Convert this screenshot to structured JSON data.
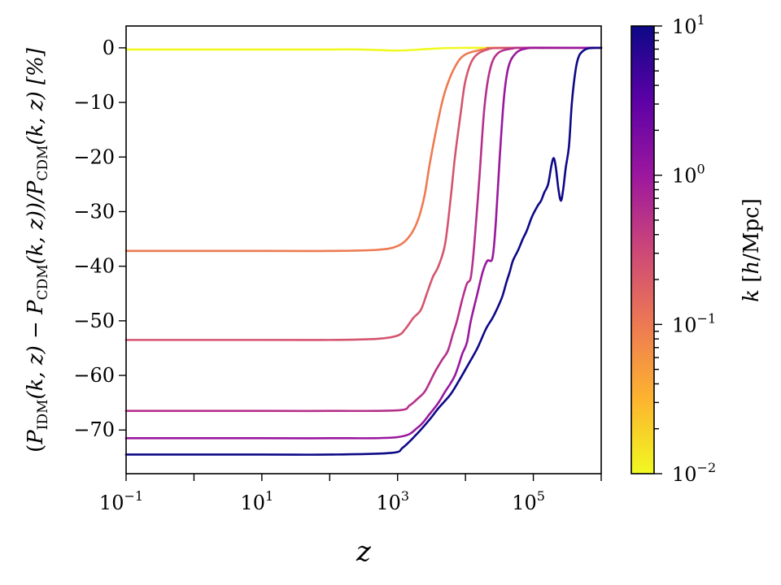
{
  "chart_data": {
    "type": "line",
    "xscale": "log",
    "xlim": [
      0.1,
      1000000
    ],
    "ylim": [
      -78,
      4
    ],
    "x_ticks": [
      {
        "value": 0.1,
        "base": "10",
        "exp": "−1"
      },
      {
        "value": 10,
        "base": "10",
        "exp": "1"
      },
      {
        "value": 1000,
        "base": "10",
        "exp": "3"
      },
      {
        "value": 100000,
        "base": "10",
        "exp": "5"
      }
    ],
    "y_ticks": [
      {
        "value": 0,
        "label": "0"
      },
      {
        "value": -10,
        "label": "−10"
      },
      {
        "value": -20,
        "label": "−20"
      },
      {
        "value": -30,
        "label": "−30"
      },
      {
        "value": -40,
        "label": "−40"
      },
      {
        "value": -50,
        "label": "−50"
      },
      {
        "value": -60,
        "label": "−60"
      },
      {
        "value": -70,
        "label": "−70"
      }
    ],
    "xlabel": "z",
    "ylabel": "(P_IDM(k, z) − P_CDM(k, z))/P_CDM(k, z) [%]",
    "ylabel_parts": {
      "open": "(",
      "P1": "P",
      "sub1": "IDM",
      "args1": "(k, z) − ",
      "P2": "P",
      "sub2": "CDM",
      "args2": "(k, z))/",
      "P3": "P",
      "sub3": "CDM",
      "args3": "(k, z) [%]"
    },
    "colorbar": {
      "label": "k [h/Mpc]",
      "label_parts": {
        "k": "k",
        "open": " [",
        "h": "h",
        "rest": "/Mpc]"
      },
      "scale": "log",
      "range": [
        0.01,
        10
      ],
      "ticks": [
        {
          "value": 10,
          "base": "10",
          "exp": "1"
        },
        {
          "value": 1,
          "base": "10",
          "exp": "0"
        },
        {
          "value": 0.1,
          "base": "10",
          "exp": "−1"
        },
        {
          "value": 0.01,
          "base": "10",
          "exp": "−2"
        }
      ],
      "colormap": "plasma",
      "colors": [
        "#f0f921",
        "#fdb42f",
        "#ed7953",
        "#cc4778",
        "#9c179e",
        "#5c01a6",
        "#0d0887"
      ]
    },
    "grid": false,
    "series": [
      {
        "color": "#f0f921",
        "points": [
          [
            0.1,
            -0.3
          ],
          [
            10,
            -0.3
          ],
          [
            100,
            -0.3
          ],
          [
            300,
            -0.3
          ],
          [
            1000,
            -0.5
          ],
          [
            3000,
            -0.2
          ],
          [
            10000,
            0
          ],
          [
            1000000,
            0
          ]
        ]
      },
      {
        "color": "#ee7a50",
        "points": [
          [
            0.1,
            -37.2
          ],
          [
            10,
            -37.2
          ],
          [
            100,
            -37.2
          ],
          [
            500,
            -37.0
          ],
          [
            1000,
            -36.3
          ],
          [
            1500,
            -34.5
          ],
          [
            2000,
            -31.5
          ],
          [
            2500,
            -27
          ],
          [
            3000,
            -21
          ],
          [
            4000,
            -13
          ],
          [
            5000,
            -8
          ],
          [
            7000,
            -3.5
          ],
          [
            10000,
            -1.2
          ],
          [
            20000,
            -0.2
          ],
          [
            30000,
            0
          ],
          [
            1000000,
            0
          ]
        ]
      },
      {
        "color": "#d5546e",
        "points": [
          [
            0.1,
            -53.5
          ],
          [
            10,
            -53.5
          ],
          [
            100,
            -53.5
          ],
          [
            500,
            -53.3
          ],
          [
            1000,
            -52.7
          ],
          [
            1300,
            -51.5
          ],
          [
            1700,
            -49.5
          ],
          [
            2200,
            -48
          ],
          [
            2700,
            -45
          ],
          [
            3300,
            -42
          ],
          [
            4000,
            -40
          ],
          [
            5000,
            -36
          ],
          [
            6000,
            -28
          ],
          [
            7000,
            -20
          ],
          [
            8500,
            -12
          ],
          [
            10000,
            -6
          ],
          [
            13000,
            -2
          ],
          [
            20000,
            -0.4
          ],
          [
            40000,
            0
          ],
          [
            1000000,
            0
          ]
        ]
      },
      {
        "color": "#b6308b",
        "points": [
          [
            0.1,
            -66.5
          ],
          [
            10,
            -66.5
          ],
          [
            100,
            -66.5
          ],
          [
            1000,
            -66.4
          ],
          [
            1500,
            -65.5
          ],
          [
            2000,
            -64.2
          ],
          [
            2500,
            -63
          ],
          [
            3000,
            -61.2
          ],
          [
            3500,
            -59.5
          ],
          [
            4500,
            -57.2
          ],
          [
            5500,
            -55.5
          ],
          [
            6500,
            -52.5
          ],
          [
            7500,
            -50
          ],
          [
            9000,
            -46
          ],
          [
            10500,
            -43.2
          ],
          [
            12000,
            -42
          ],
          [
            13500,
            -36
          ],
          [
            16000,
            -24
          ],
          [
            19000,
            -11
          ],
          [
            23000,
            -4
          ],
          [
            30000,
            -1
          ],
          [
            50000,
            -0.1
          ],
          [
            80000,
            0
          ],
          [
            1000000,
            0
          ]
        ]
      },
      {
        "color": "#9a179e",
        "points": [
          [
            0.1,
            -71.5
          ],
          [
            10,
            -71.5
          ],
          [
            100,
            -71.5
          ],
          [
            1000,
            -71.3
          ],
          [
            2000,
            -69.5
          ],
          [
            3000,
            -67
          ],
          [
            4000,
            -65
          ],
          [
            5000,
            -63
          ],
          [
            6000,
            -61.5
          ],
          [
            7000,
            -60
          ],
          [
            8000,
            -58
          ],
          [
            9000,
            -56
          ],
          [
            10500,
            -54
          ],
          [
            12000,
            -50
          ],
          [
            15000,
            -45
          ],
          [
            18000,
            -41
          ],
          [
            21000,
            -39
          ],
          [
            25000,
            -38.5
          ],
          [
            28000,
            -32
          ],
          [
            32000,
            -20
          ],
          [
            37000,
            -9
          ],
          [
            43000,
            -3.5
          ],
          [
            55000,
            -1
          ],
          [
            80000,
            -0.1
          ],
          [
            150000,
            0
          ],
          [
            1000000,
            0
          ]
        ]
      },
      {
        "color": "#0d0887",
        "points": [
          [
            0.1,
            -74.5
          ],
          [
            10,
            -74.5
          ],
          [
            100,
            -74.5
          ],
          [
            800,
            -74.2
          ],
          [
            1200,
            -73.2
          ],
          [
            2000,
            -70.5
          ],
          [
            3000,
            -68
          ],
          [
            4000,
            -66
          ],
          [
            6000,
            -63.5
          ],
          [
            8000,
            -61
          ],
          [
            11000,
            -58
          ],
          [
            15000,
            -55
          ],
          [
            20000,
            -51.5
          ],
          [
            25000,
            -49.5
          ],
          [
            30000,
            -47.5
          ],
          [
            35000,
            -45.5
          ],
          [
            40000,
            -43
          ],
          [
            45000,
            -41
          ],
          [
            50000,
            -39
          ],
          [
            60000,
            -37
          ],
          [
            70000,
            -35
          ],
          [
            80000,
            -33.5
          ],
          [
            95000,
            -31
          ],
          [
            115000,
            -29
          ],
          [
            130000,
            -28
          ],
          [
            145000,
            -26.5
          ],
          [
            165000,
            -25
          ],
          [
            185000,
            -21.5
          ],
          [
            200000,
            -20.2
          ],
          [
            215000,
            -22
          ],
          [
            235000,
            -26
          ],
          [
            255000,
            -28
          ],
          [
            275000,
            -26
          ],
          [
            300000,
            -22
          ],
          [
            335000,
            -18
          ],
          [
            370000,
            -10
          ],
          [
            420000,
            -4
          ],
          [
            470000,
            -1.5
          ],
          [
            550000,
            -0.5
          ],
          [
            650000,
            -0.1
          ],
          [
            800000,
            0
          ],
          [
            1000000,
            0
          ]
        ]
      }
    ]
  }
}
